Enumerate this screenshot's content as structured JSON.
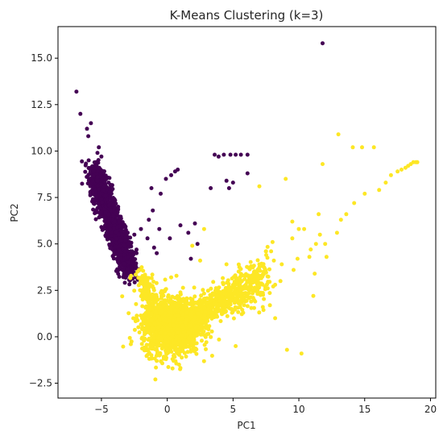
{
  "chart_data": {
    "type": "scatter",
    "title": "K-Means Clustering (k=3)",
    "xlabel": "PC1",
    "ylabel": "PC2",
    "xlim": [
      -8.3,
      20.4
    ],
    "ylim": [
      -3.3,
      16.7
    ],
    "x_ticks": [
      -5,
      0,
      5,
      10,
      15,
      20
    ],
    "x_tick_labels": [
      "−5",
      "0",
      "5",
      "10",
      "15",
      "20"
    ],
    "y_ticks": [
      -2.5,
      0.0,
      2.5,
      5.0,
      7.5,
      10.0,
      12.5,
      15.0
    ],
    "y_tick_labels": [
      "−2.5",
      "0.0",
      "2.5",
      "5.0",
      "7.5",
      "10.0",
      "12.5",
      "15.0"
    ],
    "grid": false,
    "legend": "none",
    "series": [
      {
        "color": "#440154",
        "points": [
          [
            -6.9,
            13.2
          ],
          [
            -6.6,
            12.0
          ],
          [
            -6.1,
            11.2
          ],
          [
            -5.8,
            11.5
          ],
          [
            -6.0,
            10.8
          ],
          [
            -5.2,
            10.2
          ],
          [
            -5.3,
            9.9
          ],
          [
            -5.0,
            9.7
          ],
          [
            -5.4,
            9.4
          ],
          [
            -5.6,
            8.9
          ],
          [
            -5.3,
            8.6
          ],
          [
            -5.0,
            8.2
          ],
          [
            -4.8,
            7.9
          ],
          [
            -4.7,
            7.6
          ],
          [
            -4.6,
            7.4
          ],
          [
            -4.4,
            7.1
          ],
          [
            -4.3,
            6.8
          ],
          [
            -4.1,
            6.5
          ],
          [
            -4.0,
            6.2
          ],
          [
            -3.8,
            5.9
          ],
          [
            -3.7,
            5.5
          ],
          [
            -3.5,
            5.2
          ],
          [
            -3.3,
            4.9
          ],
          [
            -3.2,
            4.6
          ],
          [
            -3.0,
            4.3
          ],
          [
            -2.9,
            4.0
          ],
          [
            -2.7,
            3.7
          ],
          [
            -3.5,
            4.2
          ],
          [
            -2.5,
            5.5
          ],
          [
            -2.0,
            5.8
          ],
          [
            -1.5,
            5.3
          ],
          [
            -1.0,
            4.8
          ],
          [
            -0.8,
            4.5
          ],
          [
            -1.4,
            6.3
          ],
          [
            -1.1,
            6.8
          ],
          [
            -0.5,
            7.7
          ],
          [
            -1.2,
            8.0
          ],
          [
            -0.1,
            8.5
          ],
          [
            0.3,
            8.7
          ],
          [
            0.6,
            8.9
          ],
          [
            0.8,
            9.0
          ],
          [
            -0.6,
            5.8
          ],
          [
            0.2,
            5.3
          ],
          [
            1.0,
            6.0
          ],
          [
            1.6,
            5.6
          ],
          [
            2.1,
            6.1
          ],
          [
            2.3,
            5.0
          ],
          [
            1.8,
            4.2
          ],
          [
            3.3,
            8.0
          ],
          [
            4.5,
            8.4
          ],
          [
            4.7,
            8.0
          ],
          [
            5.0,
            8.3
          ],
          [
            3.6,
            9.8
          ],
          [
            3.9,
            9.7
          ],
          [
            4.3,
            9.8
          ],
          [
            4.8,
            9.8
          ],
          [
            5.2,
            9.8
          ],
          [
            5.6,
            9.8
          ],
          [
            6.1,
            9.8
          ],
          [
            6.1,
            8.8
          ],
          [
            11.8,
            15.8
          ]
        ],
        "dense_band": [
          [
            -5.6,
            9.0
          ],
          [
            -2.8,
            3.5
          ]
        ],
        "dense_spread": 0.9
      },
      {
        "color": "#fde725",
        "points": [
          [
            -1.3,
            1.5
          ],
          [
            -0.8,
            -1.3
          ],
          [
            -0.9,
            -2.3
          ],
          [
            0.4,
            -1.2
          ],
          [
            0.9,
            -1.5
          ],
          [
            5.2,
            -0.5
          ],
          [
            9.1,
            -0.7
          ],
          [
            10.2,
            -0.9
          ],
          [
            8.2,
            1.0
          ],
          [
            7.8,
            1.7
          ],
          [
            10.0,
            5.8
          ],
          [
            10.4,
            5.8
          ],
          [
            9.5,
            5.3
          ],
          [
            9.6,
            3.6
          ],
          [
            8.7,
            3.9
          ],
          [
            8.1,
            4.1
          ],
          [
            9.9,
            4.2
          ],
          [
            7.5,
            4.6
          ],
          [
            9.5,
            6.2
          ],
          [
            10.8,
            4.3
          ],
          [
            10.9,
            4.7
          ],
          [
            11.3,
            5.0
          ],
          [
            11.6,
            5.5
          ],
          [
            11.2,
            3.4
          ],
          [
            12.1,
            4.3
          ],
          [
            12.0,
            5.0
          ],
          [
            12.9,
            5.6
          ],
          [
            11.1,
            2.2
          ],
          [
            11.5,
            6.6
          ],
          [
            11.8,
            9.3
          ],
          [
            13.0,
            10.9
          ],
          [
            14.1,
            10.2
          ],
          [
            14.8,
            10.2
          ],
          [
            15.7,
            10.2
          ],
          [
            16.1,
            7.9
          ],
          [
            16.6,
            8.3
          ],
          [
            17.0,
            8.7
          ],
          [
            17.5,
            8.9
          ],
          [
            17.8,
            9.0
          ],
          [
            18.1,
            9.1
          ],
          [
            18.3,
            9.2
          ],
          [
            18.5,
            9.3
          ],
          [
            18.7,
            9.4
          ],
          [
            18.9,
            9.4
          ],
          [
            19.0,
            9.4
          ],
          [
            9.0,
            8.5
          ],
          [
            7.0,
            8.1
          ],
          [
            8.6,
            3.0
          ],
          [
            6.5,
            3.0
          ],
          [
            5.9,
            2.6
          ],
          [
            6.6,
            3.5
          ],
          [
            8.2,
            2.8
          ],
          [
            4.5,
            3.9
          ],
          [
            3.6,
            1.3
          ],
          [
            4.5,
            1.6
          ],
          [
            2.0,
            0.9
          ],
          [
            2.5,
            2.0
          ],
          [
            1.5,
            1.3
          ],
          [
            0.5,
            0.6
          ],
          [
            -0.5,
            0.2
          ],
          [
            -1.6,
            2.3
          ],
          [
            0.8,
            -0.9
          ],
          [
            0.3,
            3.2
          ],
          [
            -0.7,
            1.1
          ],
          [
            1.9,
            4.9
          ],
          [
            2.5,
            4.1
          ],
          [
            2.8,
            5.8
          ],
          [
            7.0,
            3.9
          ],
          [
            7.5,
            4.6
          ],
          [
            8.0,
            5.1
          ],
          [
            13.2,
            6.3
          ],
          [
            13.6,
            6.6
          ],
          [
            14.2,
            7.2
          ],
          [
            15.0,
            7.7
          ]
        ],
        "dense_blob": [
          0.3,
          0.6
        ],
        "dense_tail": [
          [
            0.0,
            0.3
          ],
          [
            7.6,
            3.3
          ]
        ]
      }
    ]
  }
}
